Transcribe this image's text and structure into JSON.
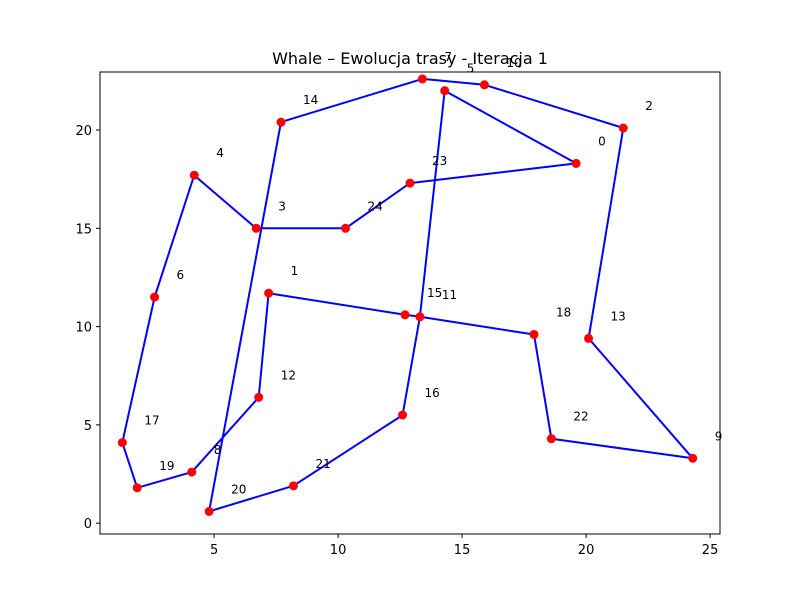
{
  "chart_data": {
    "type": "scatter",
    "title": "Whale – Ewolucja trasy - Iteracja 1",
    "xlabel": "",
    "ylabel": "",
    "xlim": [
      0.4,
      25.4
    ],
    "ylim": [
      -0.55,
      22.95
    ],
    "xticks": [
      5,
      10,
      15,
      20,
      25
    ],
    "yticks": [
      0,
      5,
      10,
      15,
      20
    ],
    "grid": false,
    "colors": {
      "route": "#0000ff",
      "marker": "#ff0000"
    },
    "points": [
      {
        "id": 0,
        "x": 19.6,
        "y": 18.3
      },
      {
        "id": 1,
        "x": 7.2,
        "y": 11.7
      },
      {
        "id": 2,
        "x": 21.5,
        "y": 20.1
      },
      {
        "id": 3,
        "x": 6.7,
        "y": 15.0
      },
      {
        "id": 4,
        "x": 4.2,
        "y": 17.7
      },
      {
        "id": 5,
        "x": 14.3,
        "y": 22.0
      },
      {
        "id": 6,
        "x": 2.6,
        "y": 11.5
      },
      {
        "id": 7,
        "x": 13.4,
        "y": 22.6
      },
      {
        "id": 8,
        "x": 4.1,
        "y": 2.6
      },
      {
        "id": 9,
        "x": 24.3,
        "y": 3.3
      },
      {
        "id": 10,
        "x": 15.9,
        "y": 22.3
      },
      {
        "id": 11,
        "x": 13.3,
        "y": 10.5
      },
      {
        "id": 12,
        "x": 6.8,
        "y": 6.4
      },
      {
        "id": 13,
        "x": 20.1,
        "y": 9.4
      },
      {
        "id": 14,
        "x": 7.7,
        "y": 20.4
      },
      {
        "id": 15,
        "x": 12.7,
        "y": 10.6
      },
      {
        "id": 16,
        "x": 12.6,
        "y": 5.5
      },
      {
        "id": 17,
        "x": 1.3,
        "y": 4.1
      },
      {
        "id": 18,
        "x": 17.9,
        "y": 9.6
      },
      {
        "id": 19,
        "x": 1.9,
        "y": 1.8
      },
      {
        "id": 20,
        "x": 4.8,
        "y": 0.6
      },
      {
        "id": 21,
        "x": 8.2,
        "y": 1.9
      },
      {
        "id": 22,
        "x": 18.6,
        "y": 4.3
      },
      {
        "id": 23,
        "x": 12.9,
        "y": 17.3
      },
      {
        "id": 24,
        "x": 10.3,
        "y": 15.0
      }
    ],
    "route": [
      7,
      10,
      2,
      13,
      9,
      22,
      18,
      11,
      15,
      1,
      12,
      8,
      19,
      17,
      6,
      4,
      3,
      24,
      23,
      0,
      5,
      11,
      16,
      21,
      20,
      14,
      7
    ]
  }
}
